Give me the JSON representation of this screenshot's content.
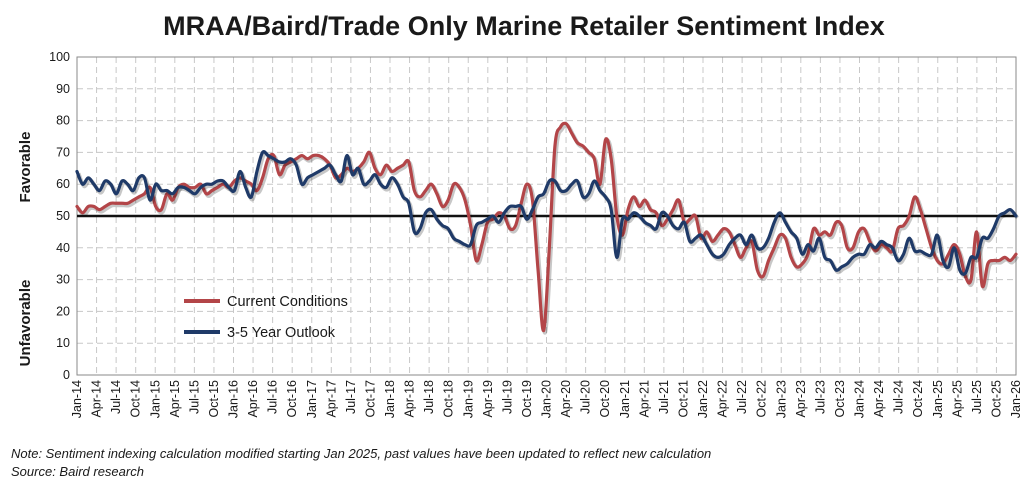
{
  "chart_data": {
    "type": "line",
    "title": "MRAA/Baird/Trade Only Marine Retailer Sentiment Index",
    "ylim": [
      0,
      100
    ],
    "yticks": [
      0,
      10,
      20,
      30,
      40,
      50,
      60,
      70,
      80,
      90,
      100
    ],
    "x_tick_labels": [
      "Jan-14",
      "Apr-14",
      "Jul-14",
      "Oct-14",
      "Jan-15",
      "Apr-15",
      "Jul-15",
      "Oct-15",
      "Jan-16",
      "Apr-16",
      "Jul-16",
      "Oct-16",
      "Jan-17",
      "Apr-17",
      "Jul-17",
      "Oct-17",
      "Jan-18",
      "Apr-18",
      "Jul-18",
      "Oct-18",
      "Jan-19",
      "Apr-19",
      "Jul-19",
      "Oct-19",
      "Jan-20",
      "Apr-20",
      "Jul-20",
      "Oct-20",
      "Jan-21",
      "Apr-21",
      "Jul-21",
      "Oct-21",
      "Jan-22",
      "Apr-22",
      "Jul-22",
      "Oct-22",
      "Jan-23",
      "Apr-23",
      "Jul-23",
      "Oct-23",
      "Jan-24",
      "Apr-24",
      "Jul-24",
      "Oct-24",
      "Jan-25",
      "Apr-25",
      "Jul-25",
      "Oct-25",
      "Jan-26"
    ],
    "reference_line": 50,
    "favorable_label": "Favorable",
    "unfavorable_label": "Unfavorable",
    "grid": true,
    "legend_position": "bottom-left",
    "series": [
      {
        "name": "Current Conditions",
        "color": "#b34548",
        "values": [
          53,
          51,
          53,
          53,
          52,
          53,
          54,
          54,
          54,
          54,
          55,
          56,
          57,
          59,
          53,
          52,
          57,
          55,
          59,
          60,
          59,
          59,
          60,
          57,
          58,
          59,
          60,
          59,
          61,
          62,
          61,
          60,
          58,
          62,
          68,
          69,
          63,
          66,
          67,
          68,
          69,
          68,
          69,
          69,
          68,
          66,
          62,
          63,
          65,
          64,
          65,
          67,
          70,
          65,
          63,
          66,
          64,
          65,
          66,
          67,
          58,
          56,
          58,
          60,
          57,
          53,
          55,
          60,
          59,
          55,
          47,
          36,
          41,
          48,
          49,
          51,
          50,
          46,
          47,
          54,
          60,
          55,
          33,
          14,
          40,
          72,
          78,
          79,
          76,
          73,
          72,
          70,
          68,
          60,
          74,
          68,
          50,
          44,
          52,
          56,
          53,
          55,
          52,
          51,
          47,
          49,
          52,
          55,
          48,
          49,
          50,
          43,
          45,
          42,
          44,
          46,
          45,
          41,
          37,
          40,
          42,
          33,
          31,
          36,
          40,
          44,
          43,
          37,
          34,
          35,
          38,
          46,
          44,
          45,
          44,
          48,
          47,
          40,
          40,
          45,
          46,
          42,
          39,
          41,
          40,
          39,
          46,
          47,
          50,
          56,
          52,
          46,
          40,
          36,
          35,
          38,
          41,
          38,
          31,
          30,
          45,
          28,
          35,
          36,
          36,
          37,
          36,
          38
        ]
      },
      {
        "name": "3-5 Year Outlook",
        "color": "#1f3a68",
        "values": [
          64,
          60,
          62,
          60,
          58,
          61,
          60,
          57,
          61,
          60,
          58,
          62,
          62,
          55,
          60,
          58,
          58,
          57,
          59,
          59,
          58,
          57,
          59,
          60,
          60,
          61,
          61,
          59,
          58,
          64,
          59,
          56,
          64,
          70,
          69,
          68,
          67,
          67,
          68,
          66,
          60,
          62,
          63,
          64,
          65,
          66,
          63,
          61,
          69,
          63,
          65,
          60,
          61,
          63,
          60,
          59,
          62,
          60,
          56,
          54,
          45,
          46,
          51,
          52,
          49,
          47,
          46,
          43,
          42,
          41,
          41,
          47,
          48,
          49,
          50,
          48,
          51,
          53,
          53,
          53,
          49,
          52,
          56,
          57,
          61,
          61,
          58,
          58,
          60,
          61,
          56,
          57,
          61,
          58,
          56,
          52,
          37,
          49,
          49,
          51,
          50,
          48,
          47,
          46,
          51,
          50,
          47,
          46,
          48,
          42,
          43,
          44,
          41,
          38,
          37,
          38,
          41,
          43,
          44,
          41,
          44,
          40,
          40,
          43,
          48,
          51,
          48,
          45,
          43,
          38,
          41,
          39,
          43,
          37,
          36,
          33,
          34,
          35,
          37,
          38,
          38,
          41,
          40,
          42,
          41,
          40,
          36,
          38,
          43,
          39,
          39,
          38,
          38,
          44,
          36,
          34,
          40,
          33,
          32,
          37,
          37,
          43,
          43,
          46,
          50,
          51,
          52,
          50
        ]
      }
    ]
  },
  "notes": {
    "line1": "Note: Sentiment indexing calculation modified  starting Jan 2025, past values have been updated to reflect new calculation",
    "line2": "Source: Baird research"
  }
}
